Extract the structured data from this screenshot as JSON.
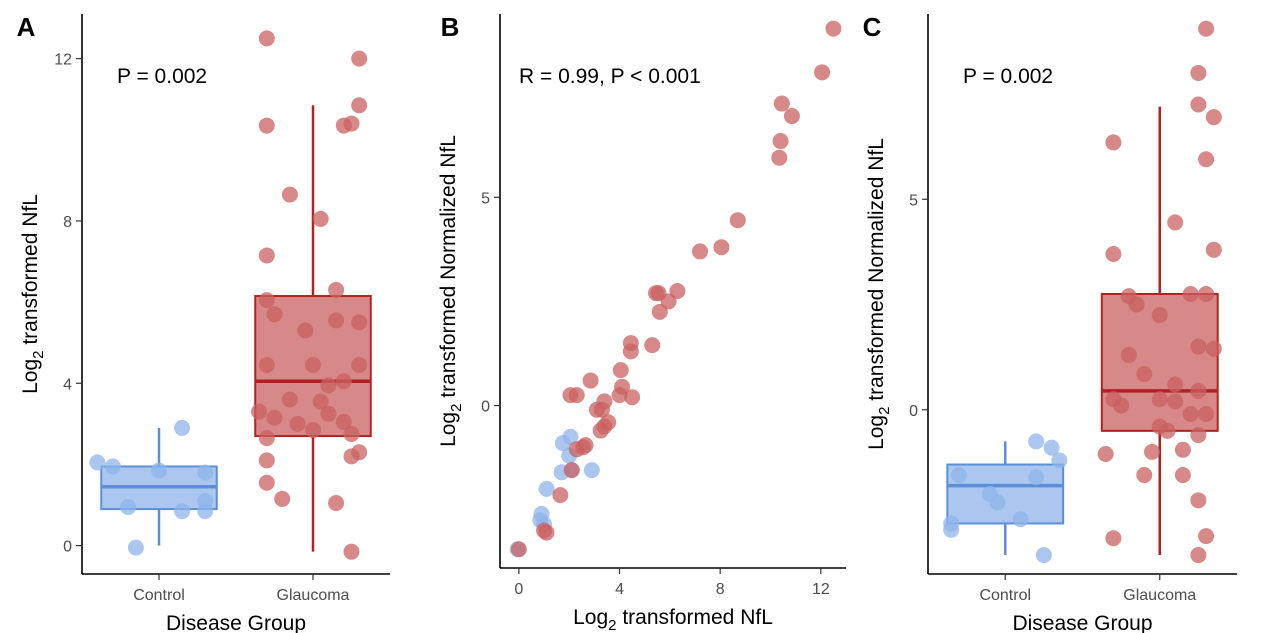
{
  "colors": {
    "control": "#5b8fd9",
    "control_fill": "#8fb4ea",
    "glaucoma": "#b22222",
    "glaucoma_fill": "#c96060"
  },
  "chart_data": [
    {
      "type": "box",
      "panel_label": "A",
      "annotation": "P = 0.002",
      "xlabel": "Disease Group",
      "ylabel": {
        "base": "Log",
        "sub": "2",
        "rest": " transformed NfL"
      },
      "categories": [
        "Control",
        "Glaucoma"
      ],
      "ylim": [
        -0.7,
        13.1
      ],
      "yticks": [
        0,
        4,
        8,
        12
      ],
      "boxes": [
        {
          "q1": 0.9,
          "median": 1.45,
          "q3": 1.95,
          "wlow": 0,
          "whigh": 2.9
        },
        {
          "q1": 2.7,
          "median": 4.05,
          "q3": 6.15,
          "wlow": -0.15,
          "whigh": 10.85
        }
      ],
      "points": [
        [
          [
            -0.4,
            2.05
          ],
          [
            -0.3,
            1.95
          ],
          [
            0.0,
            1.85
          ],
          [
            0.3,
            1.8
          ],
          [
            -0.2,
            0.95
          ],
          [
            0.15,
            0.85
          ],
          [
            0.3,
            0.85
          ],
          [
            0.3,
            1.1
          ],
          [
            -0.15,
            -0.05
          ],
          [
            0.15,
            2.9
          ]
        ],
        [
          [
            -0.3,
            12.5
          ],
          [
            0.3,
            12.0
          ],
          [
            0.3,
            10.85
          ],
          [
            -0.3,
            10.35
          ],
          [
            0.2,
            10.35
          ],
          [
            0.25,
            10.4
          ],
          [
            -0.15,
            8.65
          ],
          [
            0.05,
            8.05
          ],
          [
            -0.3,
            7.15
          ],
          [
            0.15,
            6.3
          ],
          [
            -0.3,
            6.05
          ],
          [
            -0.25,
            5.7
          ],
          [
            0.15,
            5.55
          ],
          [
            -0.05,
            5.3
          ],
          [
            0.3,
            5.5
          ],
          [
            -0.3,
            4.45
          ],
          [
            0.3,
            4.45
          ],
          [
            0.0,
            4.45
          ],
          [
            0.2,
            4.05
          ],
          [
            0.1,
            3.95
          ],
          [
            -0.15,
            3.6
          ],
          [
            0.05,
            3.55
          ],
          [
            -0.35,
            3.3
          ],
          [
            -0.25,
            3.15
          ],
          [
            0.1,
            3.25
          ],
          [
            0.2,
            3.05
          ],
          [
            -0.1,
            3.0
          ],
          [
            0.0,
            2.85
          ],
          [
            0.25,
            2.75
          ],
          [
            -0.3,
            2.65
          ],
          [
            0.3,
            2.3
          ],
          [
            0.25,
            2.2
          ],
          [
            -0.3,
            2.1
          ],
          [
            -0.3,
            1.55
          ],
          [
            -0.2,
            1.15
          ],
          [
            0.15,
            1.05
          ],
          [
            0.25,
            -0.15
          ]
        ]
      ]
    },
    {
      "type": "scatter",
      "panel_label": "B",
      "annotation": "R = 0.99, P < 0.001",
      "xlabel": {
        "base": "Log",
        "sub": "2",
        "rest": " transformed NfL"
      },
      "ylabel": {
        "base": "Log",
        "sub": "2",
        "rest": " transformed Normalized NfL"
      },
      "xlim": [
        -0.75,
        13.0
      ],
      "ylim": [
        -3.9,
        9.4
      ],
      "xticks": [
        0,
        4,
        8,
        12
      ],
      "yticks": [
        0,
        5
      ],
      "series": [
        {
          "group": "control",
          "points": [
            [
              -0.05,
              -3.45
            ],
            [
              0.9,
              -2.6
            ],
            [
              0.85,
              -2.75
            ],
            [
              1.0,
              -2.85
            ],
            [
              1.1,
              -2.0
            ],
            [
              1.7,
              -1.6
            ],
            [
              1.75,
              -0.9
            ],
            [
              2.05,
              -0.75
            ],
            [
              2.0,
              -1.2
            ],
            [
              2.1,
              -1.55
            ],
            [
              2.9,
              -1.55
            ]
          ]
        },
        {
          "group": "glaucoma",
          "points": [
            [
              0.0,
              -3.45
            ],
            [
              1.0,
              -3.0
            ],
            [
              1.1,
              -3.05
            ],
            [
              1.65,
              -2.15
            ],
            [
              2.1,
              -1.55
            ],
            [
              2.05,
              0.25
            ],
            [
              2.3,
              0.25
            ],
            [
              2.3,
              -1.05
            ],
            [
              2.55,
              -1.0
            ],
            [
              2.65,
              -0.95
            ],
            [
              2.85,
              0.6
            ],
            [
              3.1,
              -0.1
            ],
            [
              3.25,
              -0.6
            ],
            [
              3.3,
              -0.1
            ],
            [
              3.4,
              -0.5
            ],
            [
              3.55,
              -0.4
            ],
            [
              3.4,
              0.1
            ],
            [
              4.0,
              0.25
            ],
            [
              4.05,
              0.85
            ],
            [
              4.1,
              0.45
            ],
            [
              4.45,
              1.3
            ],
            [
              4.45,
              1.5
            ],
            [
              4.5,
              0.2
            ],
            [
              5.3,
              1.45
            ],
            [
              5.45,
              2.7
            ],
            [
              5.55,
              2.7
            ],
            [
              5.6,
              2.25
            ],
            [
              5.95,
              2.5
            ],
            [
              6.3,
              2.75
            ],
            [
              7.2,
              3.7
            ],
            [
              8.05,
              3.8
            ],
            [
              8.7,
              4.45
            ],
            [
              10.35,
              5.95
            ],
            [
              10.4,
              6.35
            ],
            [
              10.45,
              7.25
            ],
            [
              10.85,
              6.95
            ],
            [
              12.05,
              8.0
            ],
            [
              12.5,
              9.05
            ]
          ]
        }
      ]
    },
    {
      "type": "box",
      "panel_label": "C",
      "annotation": "P = 0.002",
      "xlabel": "Disease Group",
      "ylabel": {
        "base": "Log",
        "sub": "2",
        "rest": " transformed Normalized NfL"
      },
      "categories": [
        "Control",
        "Glaucoma"
      ],
      "ylim": [
        -3.9,
        9.4
      ],
      "yticks": [
        0,
        5
      ],
      "boxes": [
        {
          "q1": -2.7,
          "median": -1.8,
          "q3": -1.3,
          "wlow": -3.45,
          "whigh": -0.75
        },
        {
          "q1": -0.5,
          "median": 0.45,
          "q3": 2.75,
          "wlow": -3.45,
          "whigh": 7.2
        }
      ],
      "points": [
        [
          [
            -0.3,
            -1.55
          ],
          [
            -0.1,
            -2.0
          ],
          [
            -0.05,
            -2.2
          ],
          [
            0.2,
            -0.75
          ],
          [
            0.3,
            -0.9
          ],
          [
            0.35,
            -1.2
          ],
          [
            0.2,
            -1.6
          ],
          [
            -0.35,
            -2.85
          ],
          [
            -0.35,
            -2.7
          ],
          [
            0.1,
            -2.6
          ],
          [
            0.25,
            -3.45
          ]
        ],
        [
          [
            0.3,
            9.05
          ],
          [
            0.25,
            8.0
          ],
          [
            0.25,
            7.25
          ],
          [
            0.35,
            6.95
          ],
          [
            -0.3,
            6.35
          ],
          [
            0.3,
            5.95
          ],
          [
            0.1,
            4.45
          ],
          [
            0.35,
            3.8
          ],
          [
            -0.3,
            3.7
          ],
          [
            0.2,
            2.75
          ],
          [
            0.3,
            2.75
          ],
          [
            -0.2,
            2.7
          ],
          [
            -0.15,
            2.5
          ],
          [
            0.0,
            2.25
          ],
          [
            0.25,
            1.5
          ],
          [
            0.35,
            1.45
          ],
          [
            -0.2,
            1.3
          ],
          [
            -0.1,
            0.85
          ],
          [
            0.1,
            0.6
          ],
          [
            0.25,
            0.45
          ],
          [
            -0.3,
            0.25
          ],
          [
            0.0,
            0.25
          ],
          [
            0.1,
            0.2
          ],
          [
            -0.25,
            0.1
          ],
          [
            0.2,
            -0.1
          ],
          [
            0.3,
            -0.1
          ],
          [
            0.0,
            -0.4
          ],
          [
            0.05,
            -0.5
          ],
          [
            0.25,
            -0.6
          ],
          [
            -0.35,
            -1.05
          ],
          [
            0.15,
            -0.95
          ],
          [
            -0.05,
            -1.0
          ],
          [
            -0.1,
            -1.55
          ],
          [
            0.15,
            -1.55
          ],
          [
            0.25,
            -2.15
          ],
          [
            -0.3,
            -3.05
          ],
          [
            0.3,
            -3.0
          ],
          [
            0.25,
            -3.45
          ]
        ]
      ]
    }
  ]
}
